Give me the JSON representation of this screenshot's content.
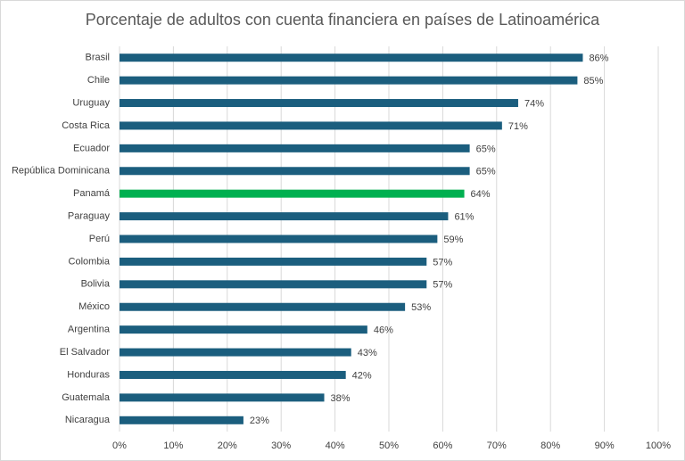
{
  "chart_data": {
    "type": "bar",
    "orientation": "horizontal",
    "title": "Porcentaje de adultos con cuenta financiera en países de Latinoamérica",
    "categories": [
      "Brasil",
      "Chile",
      "Uruguay",
      "Costa Rica",
      "Ecuador",
      "República Dominicana",
      "Panamá",
      "Paraguay",
      "Perú",
      "Colombia",
      "Bolivia",
      "México",
      "Argentina",
      "El Salvador",
      "Honduras",
      "Guatemala",
      "Nicaragua"
    ],
    "values": [
      86,
      85,
      74,
      71,
      65,
      65,
      64,
      61,
      59,
      57,
      57,
      53,
      46,
      43,
      42,
      38,
      23
    ],
    "value_labels": [
      "86%",
      "85%",
      "74%",
      "71%",
      "65%",
      "65%",
      "64%",
      "61%",
      "59%",
      "57%",
      "57%",
      "53%",
      "46%",
      "43%",
      "42%",
      "38%",
      "23%"
    ],
    "colors": [
      "#1b5e7e",
      "#1b5e7e",
      "#1b5e7e",
      "#1b5e7e",
      "#1b5e7e",
      "#1b5e7e",
      "#00b050",
      "#1b5e7e",
      "#1b5e7e",
      "#1b5e7e",
      "#1b5e7e",
      "#1b5e7e",
      "#1b5e7e",
      "#1b5e7e",
      "#1b5e7e",
      "#1b5e7e",
      "#1b5e7e"
    ],
    "xlim": [
      0,
      100
    ],
    "xticks": [
      {
        "value": 0,
        "label": "0%"
      },
      {
        "value": 10,
        "label": "10%"
      },
      {
        "value": 20,
        "label": "20%"
      },
      {
        "value": 30,
        "label": "30%"
      },
      {
        "value": 40,
        "label": "40%"
      },
      {
        "value": 50,
        "label": "50%"
      },
      {
        "value": 60,
        "label": "60%"
      },
      {
        "value": 70,
        "label": "70%"
      },
      {
        "value": 80,
        "label": "80%"
      },
      {
        "value": 90,
        "label": "90%"
      },
      {
        "value": 100,
        "label": "100%"
      }
    ],
    "grid": true
  }
}
